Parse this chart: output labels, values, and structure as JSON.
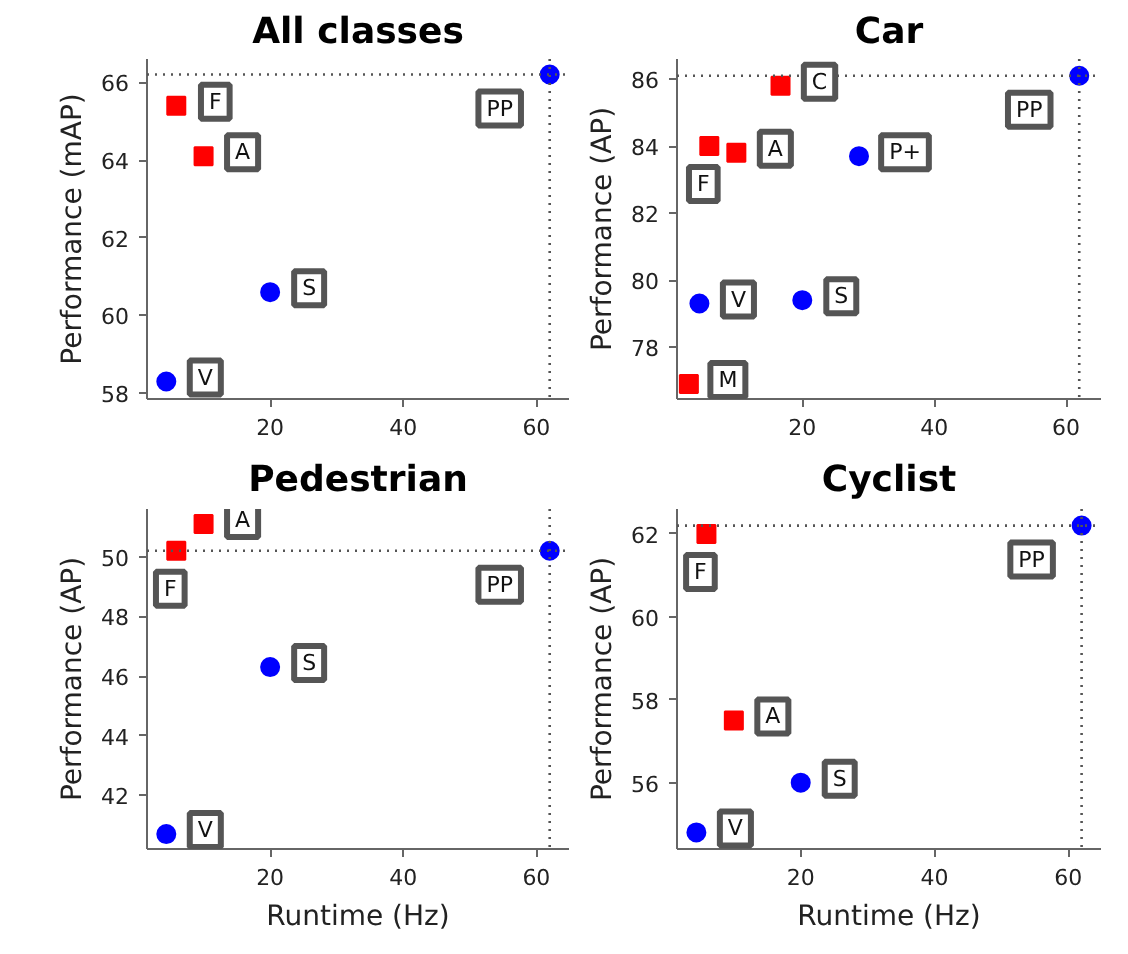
{
  "chart_data": [
    {
      "type": "scatter",
      "title": "All classes",
      "ylabel": "Performance (mAP)",
      "xlim": [
        1.5,
        64.9
      ],
      "ylim": [
        57.85,
        66.6
      ],
      "xticks": [
        20,
        40,
        60
      ],
      "yticks": [
        58,
        60,
        62,
        64,
        66
      ],
      "series": [
        {
          "color": "#ff0000",
          "marker": "square",
          "x": [
            5.9,
            10
          ],
          "values": [
            65.4,
            64.1
          ]
        },
        {
          "color": "#0000ff",
          "marker": "circle",
          "x": [
            4.4,
            20,
            62
          ],
          "values": [
            58.3,
            60.6,
            66.2
          ]
        }
      ],
      "annotations": [
        {
          "text": "PP",
          "x": 62,
          "y": 66.2
        },
        {
          "text": "F",
          "x": 5.9,
          "y": 65.4
        },
        {
          "text": "A",
          "x": 10,
          "y": 64.1
        },
        {
          "text": "S",
          "x": 20,
          "y": 60.6
        },
        {
          "text": "V",
          "x": 4.4,
          "y": 58.3
        }
      ],
      "ref_lines": [
        {
          "axis": "x",
          "value": 62,
          "color": "#555555",
          "line_style": "dotted"
        },
        {
          "axis": "y",
          "value": 66.2,
          "color": "#555555",
          "line_style": "dotted"
        }
      ]
    },
    {
      "type": "scatter",
      "title": "Car",
      "ylabel": "Performance (AP)",
      "xlim": [
        1.0,
        65.3
      ],
      "ylim": [
        76.45,
        86.6
      ],
      "xticks": [
        20,
        40,
        60
      ],
      "yticks": [
        78,
        80,
        82,
        84,
        86
      ],
      "series": [
        {
          "color": "#ff0000",
          "marker": "square",
          "x": [
            16.7,
            5.9,
            10,
            2.8
          ],
          "values": [
            85.8,
            84.0,
            83.8,
            76.9
          ]
        },
        {
          "color": "#0000ff",
          "marker": "circle",
          "x": [
            62,
            28.6,
            4.4,
            20
          ],
          "values": [
            86.1,
            83.7,
            79.3,
            79.4
          ]
        }
      ],
      "annotations": [
        {
          "text": "PP",
          "x": 62,
          "y": 86.1
        },
        {
          "text": "F",
          "x": 5.9,
          "y": 84.0
        },
        {
          "text": "A",
          "x": 10,
          "y": 83.8
        },
        {
          "text": "C",
          "x": 16.7,
          "y": 85.8
        },
        {
          "text": "P+",
          "x": 28.6,
          "y": 83.7
        },
        {
          "text": "V",
          "x": 4.4,
          "y": 79.3
        },
        {
          "text": "S",
          "x": 20,
          "y": 79.4
        },
        {
          "text": "M",
          "x": 2.8,
          "y": 76.9
        }
      ],
      "ref_lines": [
        {
          "axis": "x",
          "value": 62,
          "color": "#555555",
          "line_style": "dotted"
        },
        {
          "axis": "y",
          "value": 86.1,
          "color": "#555555",
          "line_style": "dotted"
        }
      ]
    },
    {
      "type": "scatter",
      "title": "Pedestrian",
      "xlabel": "Runtime (Hz)",
      "ylabel": "Performance (AP)",
      "xlim": [
        1.5,
        64.9
      ],
      "ylim": [
        40.2,
        51.6
      ],
      "xticks": [
        20,
        40,
        60
      ],
      "yticks": [
        42,
        44,
        46,
        48,
        50
      ],
      "series": [
        {
          "color": "#ff0000",
          "marker": "square",
          "x": [
            5.9,
            10
          ],
          "values": [
            50.2,
            51.1
          ]
        },
        {
          "color": "#0000ff",
          "marker": "circle",
          "x": [
            4.4,
            20,
            62
          ],
          "values": [
            40.7,
            46.3,
            50.2
          ]
        }
      ],
      "annotations": [
        {
          "text": "PP",
          "x": 62,
          "y": 50.2
        },
        {
          "text": "A",
          "x": 10,
          "y": 51.1
        },
        {
          "text": "F",
          "x": 5.9,
          "y": 50.2
        },
        {
          "text": "S",
          "x": 20,
          "y": 46.3
        },
        {
          "text": "V",
          "x": 4.4,
          "y": 40.7
        }
      ],
      "ref_lines": [
        {
          "axis": "x",
          "value": 62,
          "color": "#555555",
          "line_style": "dotted"
        },
        {
          "axis": "y",
          "value": 50.2,
          "color": "#555555",
          "line_style": "dotted"
        }
      ]
    },
    {
      "type": "scatter",
      "title": "Cyclist",
      "xlabel": "Runtime (Hz)",
      "ylabel": "Performance (AP)",
      "xlim": [
        1.5,
        64.9
      ],
      "ylim": [
        54.4,
        62.6
      ],
      "xticks": [
        20,
        40,
        60
      ],
      "yticks": [
        56,
        58,
        60,
        62
      ],
      "series": [
        {
          "color": "#ff0000",
          "marker": "square",
          "x": [
            5.9,
            10
          ],
          "values": [
            62.0,
            57.5
          ]
        },
        {
          "color": "#0000ff",
          "marker": "circle",
          "x": [
            4.4,
            20,
            62
          ],
          "values": [
            54.8,
            56.0,
            62.2
          ]
        }
      ],
      "annotations": [
        {
          "text": "PP",
          "x": 62,
          "y": 62.2
        },
        {
          "text": "F",
          "x": 5.9,
          "y": 62.0
        },
        {
          "text": "A",
          "x": 10,
          "y": 57.5
        },
        {
          "text": "S",
          "x": 20,
          "y": 56.0
        },
        {
          "text": "V",
          "x": 4.4,
          "y": 54.8
        }
      ],
      "ref_lines": [
        {
          "axis": "x",
          "value": 62,
          "color": "#555555",
          "line_style": "dotted"
        },
        {
          "axis": "y",
          "value": 62.2,
          "color": "#555555",
          "line_style": "dotted"
        }
      ]
    }
  ]
}
